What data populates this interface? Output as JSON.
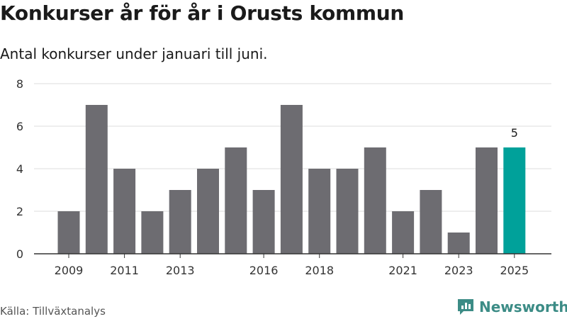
{
  "title": "Konkurser år för år i Orusts kommun",
  "subtitle": "Antal konkurser under januari till juni.",
  "source": "Källa: Tillväxtanalys",
  "brand": {
    "name": "Newsworthy",
    "icon": "newsworthy-logo-icon",
    "color": "#3c8c86"
  },
  "colors": {
    "bar": "#6d6c71",
    "highlight": "#00a19a",
    "grid": "#dddddd",
    "axis": "#333333"
  },
  "chart_data": {
    "type": "bar",
    "x": [
      2009,
      2010,
      2011,
      2012,
      2013,
      2014,
      2015,
      2016,
      2017,
      2018,
      2019,
      2020,
      2021,
      2022,
      2023,
      2024,
      2025
    ],
    "values": [
      2,
      7,
      4,
      2,
      3,
      4,
      5,
      3,
      7,
      4,
      4,
      5,
      2,
      3,
      1,
      5,
      5
    ],
    "x_tick_labels": [
      2009,
      2011,
      2013,
      2016,
      2018,
      2021,
      2023,
      2025
    ],
    "y_ticks": [
      0,
      2,
      4,
      6,
      8
    ],
    "ylim": [
      0,
      8
    ],
    "highlight": {
      "x": 2025,
      "label": "5"
    },
    "grid": true,
    "legend": "none"
  }
}
